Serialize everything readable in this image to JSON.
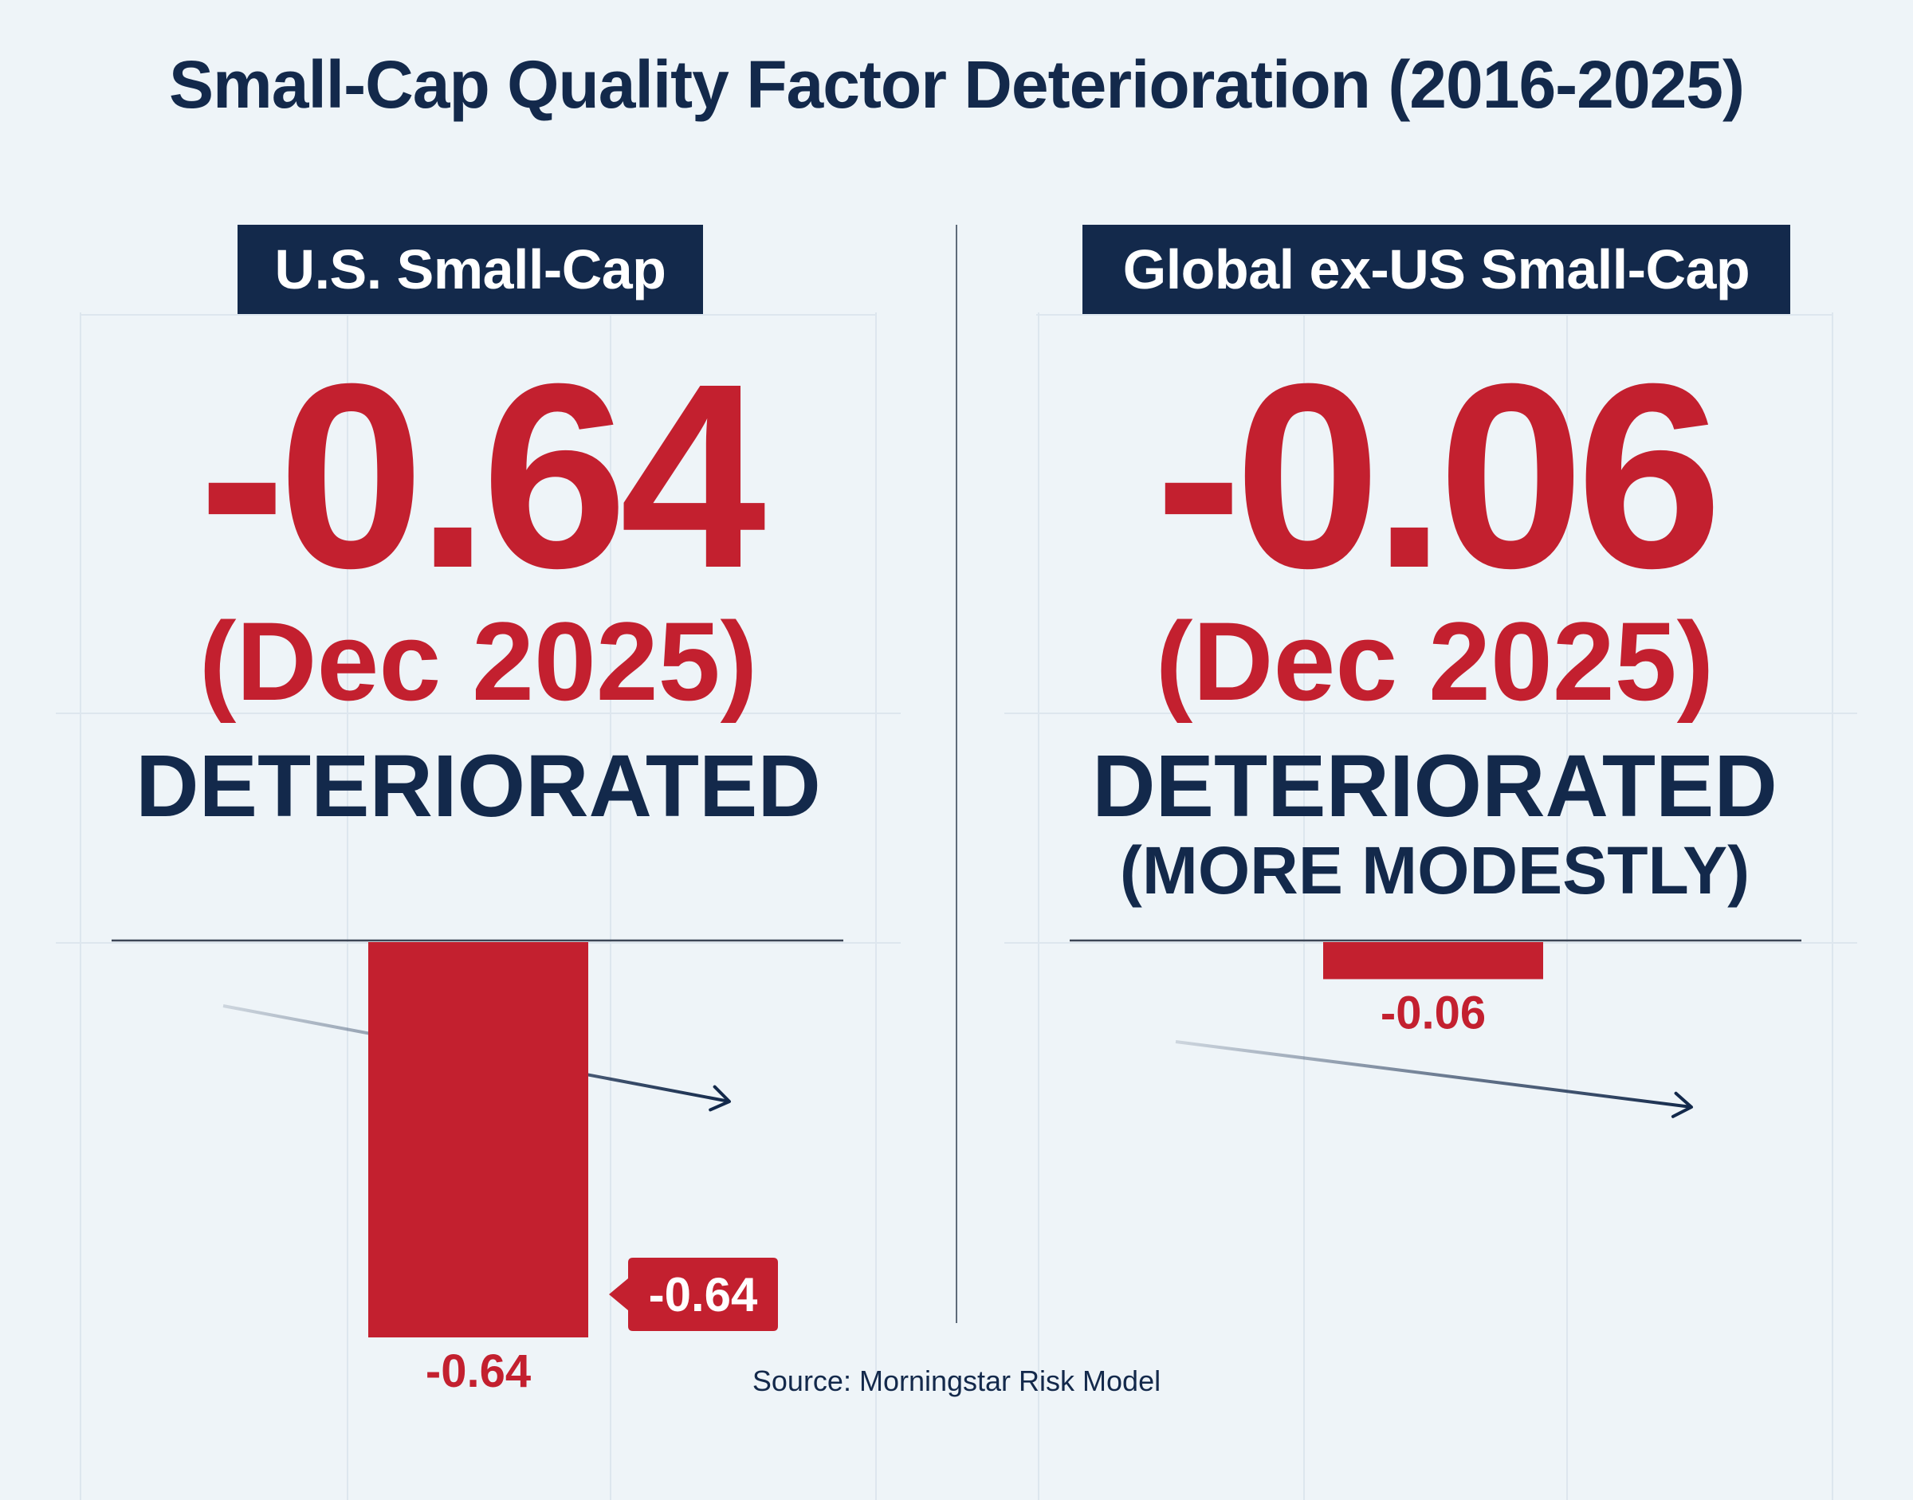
{
  "title": "Small-Cap Quality Factor Deterioration (2016-2025)",
  "source": "Source: Morningstar Risk Model",
  "colors": {
    "negative": "#c3202f",
    "navy": "#13294b",
    "background": "#eef4f8"
  },
  "chart_data": [
    {
      "type": "bar",
      "panel_label": "U.S. Small-Cap",
      "headline_value": "-0.64",
      "headline_date": "(Dec 2025)",
      "status": "DETERIORATED",
      "status_sub": "",
      "values": [
        -0.64
      ],
      "bar_label": "-0.64",
      "callout_label": "-0.64",
      "ylim": [
        -0.64,
        0
      ],
      "trend_arrow": "down"
    },
    {
      "type": "bar",
      "panel_label": "Global ex-US Small-Cap",
      "headline_value": "-0.06",
      "headline_date": "(Dec 2025)",
      "status": "DETERIORATED",
      "status_sub": "(MORE MODESTLY)",
      "values": [
        -0.06
      ],
      "bar_label": "-0.06",
      "ylim": [
        -0.64,
        0
      ],
      "trend_arrow": "down"
    }
  ]
}
